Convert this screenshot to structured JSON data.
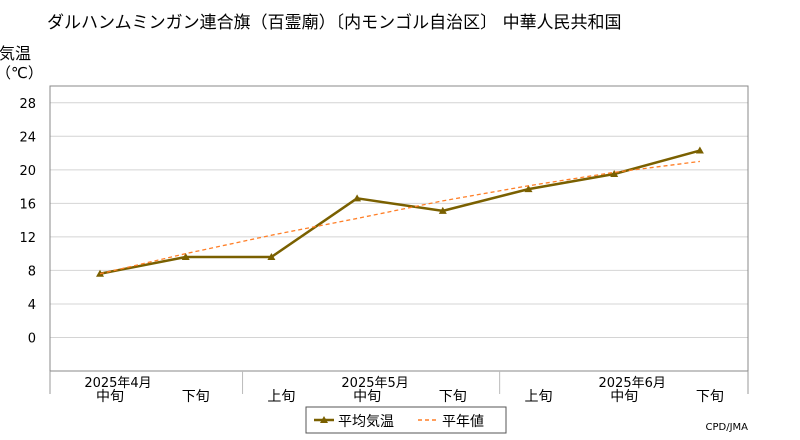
{
  "chart_data": {
    "type": "line",
    "title": "ダルハンムミンガン連合旗（百霊廟）〔内モンゴル自治区〕 中華人民共和国",
    "ylabel": "気温",
    "yunit": "（℃）",
    "ylim": [
      -4,
      30
    ],
    "yticks": [
      0,
      4,
      8,
      12,
      16,
      20,
      24,
      28
    ],
    "grid": true,
    "x_sub_labels": [
      "中旬",
      "下旬",
      "上旬",
      "中旬",
      "下旬",
      "上旬",
      "中旬",
      "下旬"
    ],
    "x_month_labels": [
      {
        "label": "2025年4月",
        "index": 0
      },
      {
        "label": "2025年5月",
        "index": 3
      },
      {
        "label": "2025年6月",
        "index": 6
      }
    ],
    "series": [
      {
        "name": "平均気温",
        "color": "#7a6000",
        "values": [
          7.6,
          9.6,
          9.6,
          16.6,
          15.1,
          17.7,
          19.5,
          22.3
        ]
      },
      {
        "name": "平年値",
        "color": "#ff7f27",
        "values": [
          7.6,
          10.0,
          12.2,
          14.2,
          16.3,
          18.1,
          19.7,
          21.0
        ]
      }
    ],
    "legend_position": "bottom-center",
    "source": "CPD/JMA"
  }
}
